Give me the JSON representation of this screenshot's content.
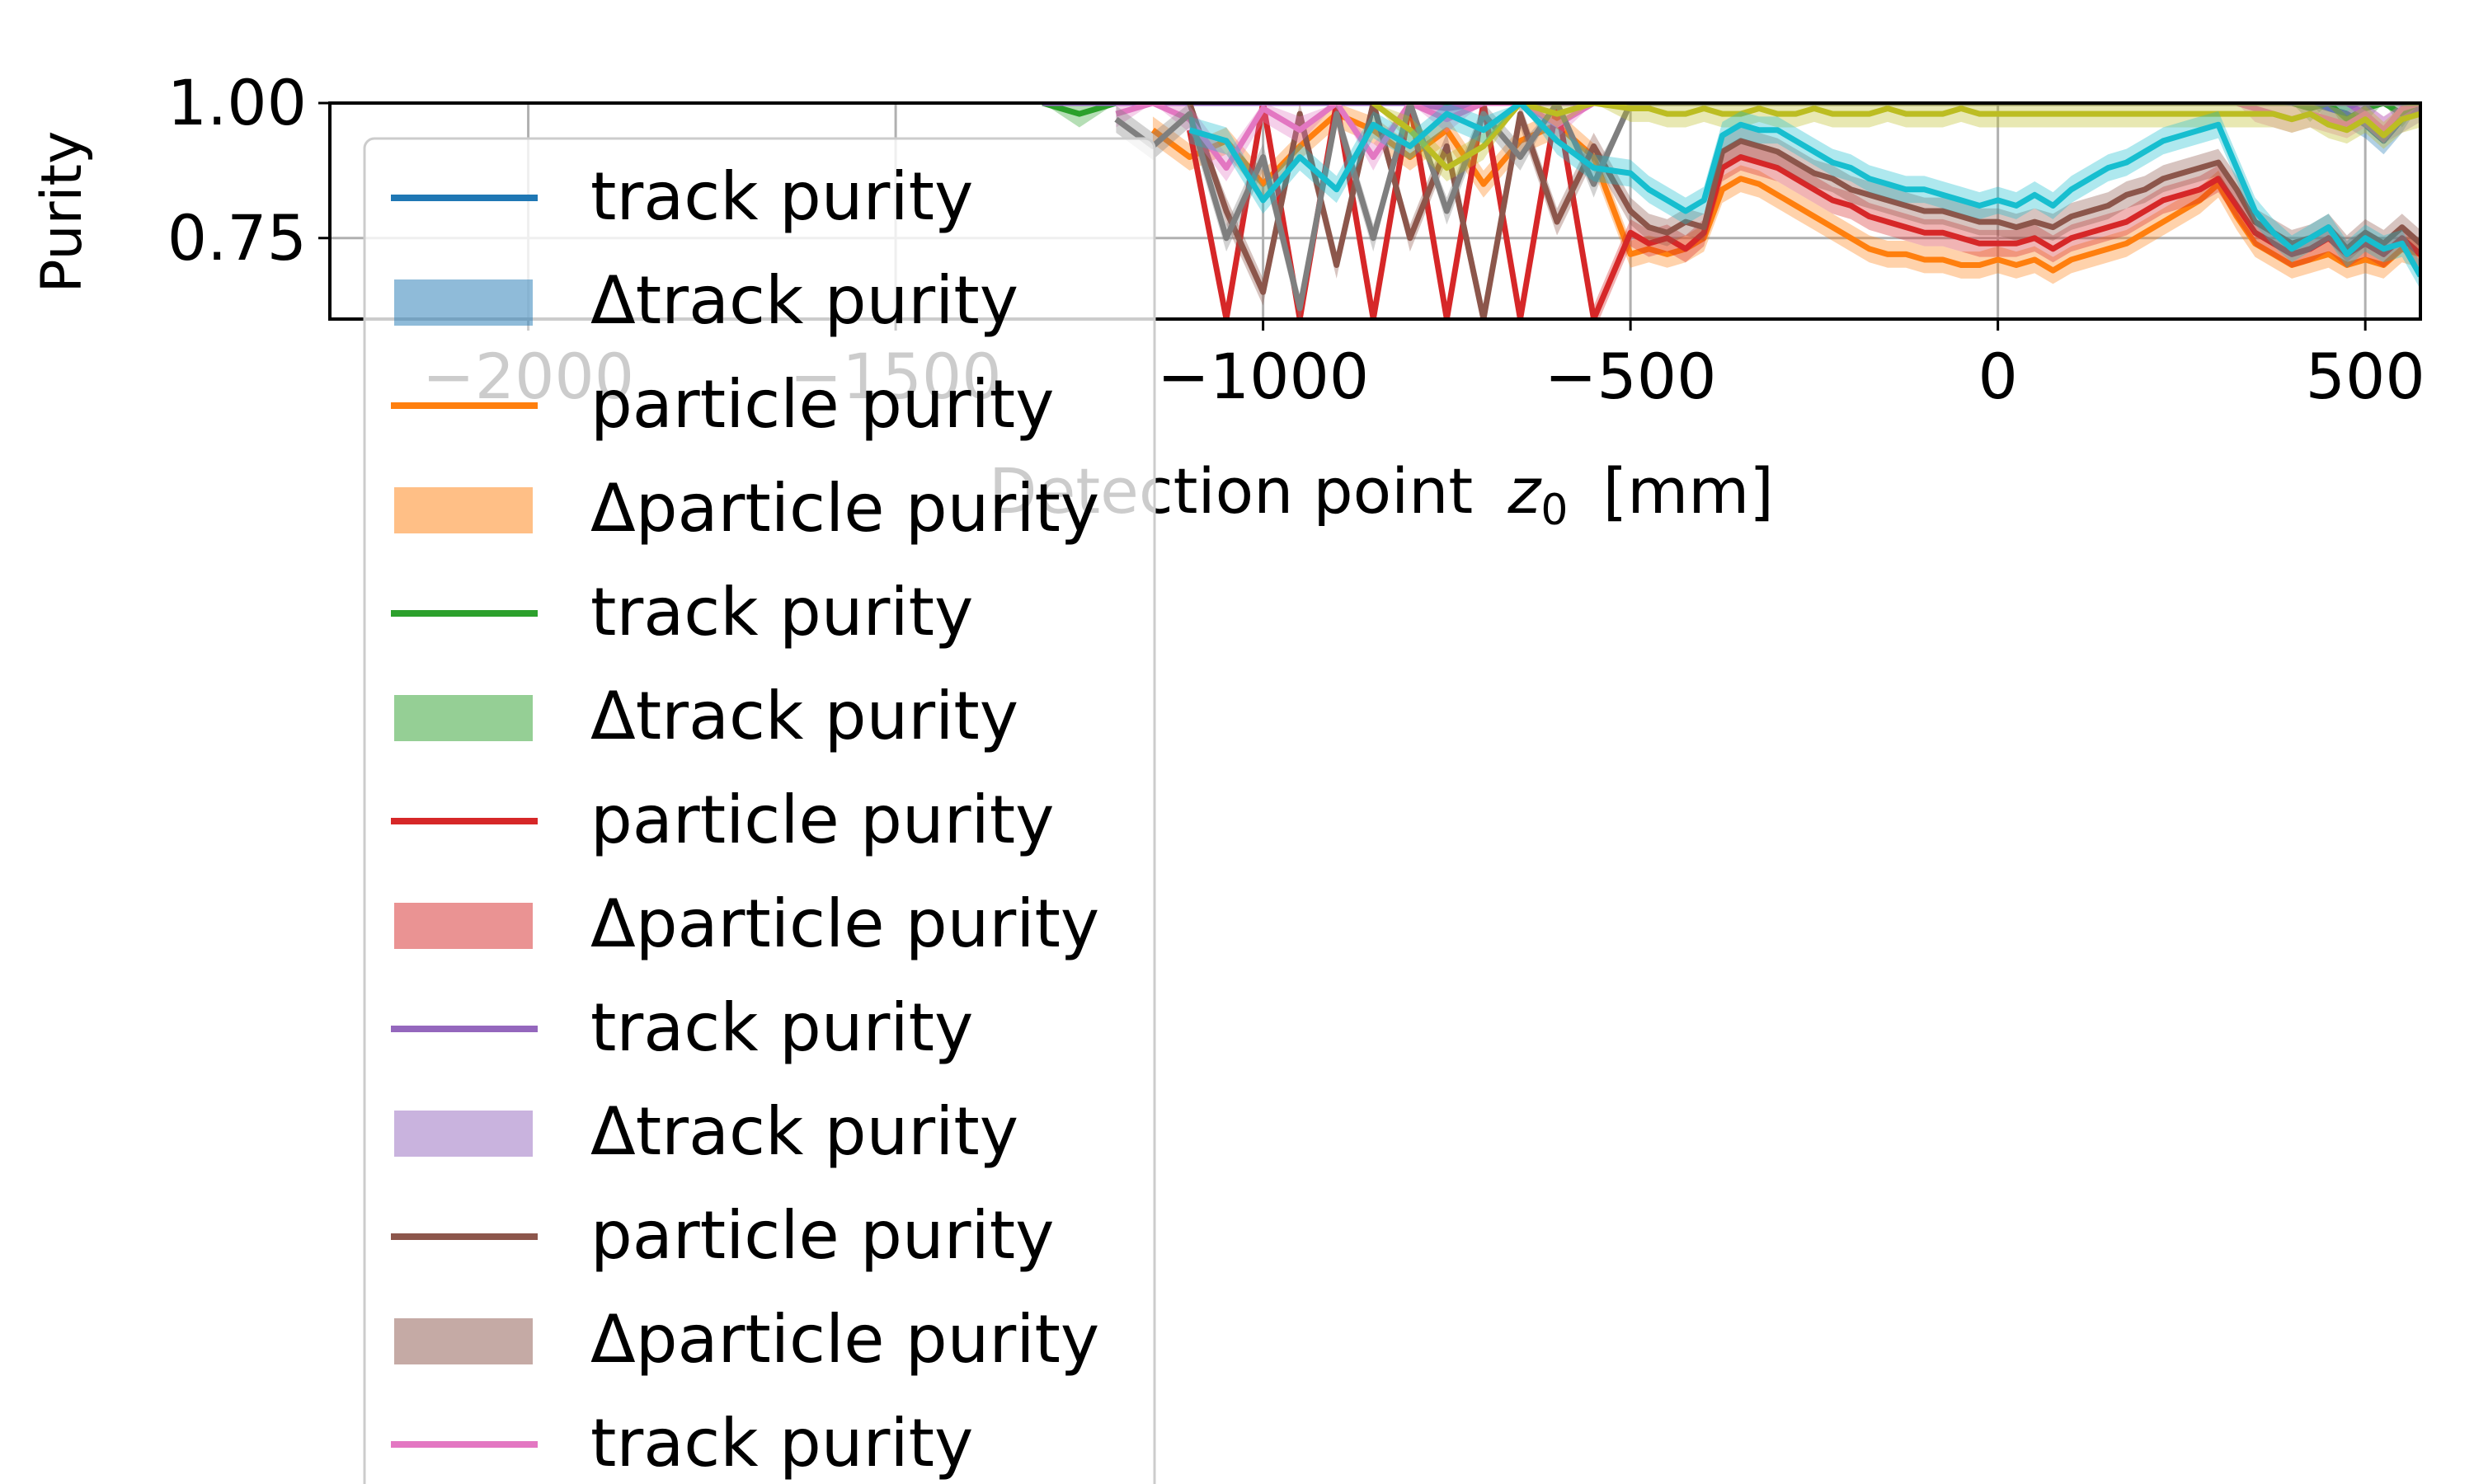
{
  "chart_data": {
    "type": "line",
    "ylabel": "Purity",
    "xlabel": "Detection point",
    "xlabel_symbol": "z",
    "xlabel_subscript": "0",
    "xlabel_unit": "[mm]",
    "xlim": [
      -2270,
      575
    ],
    "ylim": [
      0.6,
      1.0
    ],
    "xticks": [
      -2000,
      -1500,
      -1000,
      -500,
      0,
      500
    ],
    "xtick_labels": [
      "−2000",
      "−1500",
      "−1000",
      "−500",
      "0",
      "500"
    ],
    "yticks": [
      0.75,
      1.0
    ],
    "ytick_labels": [
      "0.75",
      "1.00"
    ],
    "grid": true,
    "legend_placement": "upper-left",
    "x": [
      -1300,
      -1250,
      -1200,
      -1150,
      -1100,
      -1050,
      -1000,
      -950,
      -900,
      -850,
      -800,
      -750,
      -700,
      -650,
      -600,
      -550,
      -500,
      -475,
      -450,
      -425,
      -400,
      -375,
      -350,
      -325,
      -300,
      -275,
      -250,
      -225,
      -200,
      -175,
      -150,
      -125,
      -100,
      -75,
      -50,
      -25,
      0,
      25,
      50,
      75,
      100,
      125,
      150,
      175,
      200,
      225,
      250,
      275,
      300,
      325,
      350,
      375,
      400,
      425,
      450,
      475,
      500,
      525,
      550,
      575
    ],
    "series": [
      {
        "name": "track purity",
        "kind": "line",
        "color": "#1f77b4",
        "values": [
          1.0,
          1.0,
          1.0,
          1.0,
          1.0,
          1.0,
          1.0,
          1.0,
          1.0,
          1.0,
          1.0,
          1.0,
          1.0,
          1.0,
          1.0,
          1.0,
          1.0,
          1.0,
          1.0,
          1.0,
          1.0,
          1.0,
          1.0,
          1.0,
          1.0,
          1.0,
          1.0,
          1.0,
          1.0,
          1.0,
          1.0,
          1.0,
          1.0,
          1.0,
          1.0,
          1.0,
          1.0,
          1.0,
          1.0,
          1.0,
          1.0,
          1.0,
          1.0,
          1.0,
          1.0,
          1.0,
          1.0,
          1.0,
          1.0,
          1.0,
          1.0,
          1.0,
          1.0,
          1.0,
          0.99,
          0.98,
          0.96,
          0.93,
          0.97,
          1.0
        ]
      },
      {
        "name": "Δtrack purity",
        "kind": "band",
        "color": "#1f77b4"
      },
      {
        "name": "particle purity",
        "kind": "line",
        "color": "#ff7f0e",
        "values": [
          null,
          null,
          null,
          0.95,
          0.9,
          0.93,
          0.85,
          0.92,
          0.98,
          0.95,
          0.9,
          0.95,
          0.85,
          0.93,
          0.96,
          0.9,
          0.72,
          0.73,
          0.72,
          0.73,
          0.75,
          0.84,
          0.86,
          0.85,
          0.83,
          0.81,
          0.79,
          0.77,
          0.75,
          0.73,
          0.72,
          0.72,
          0.71,
          0.71,
          0.7,
          0.7,
          0.71,
          0.7,
          0.71,
          0.69,
          0.71,
          0.72,
          0.73,
          0.74,
          0.76,
          0.78,
          0.8,
          0.82,
          0.85,
          0.79,
          0.74,
          0.72,
          0.7,
          0.71,
          0.72,
          0.7,
          0.71,
          0.7,
          0.73,
          0.72
        ]
      },
      {
        "name": "Δparticle purity",
        "kind": "band",
        "color": "#ff7f0e"
      },
      {
        "name": "track purity",
        "kind": "line",
        "color": "#2ca02c",
        "values": [
          1.0,
          0.98,
          1.0,
          1.0,
          1.0,
          1.0,
          1.0,
          1.0,
          1.0,
          1.0,
          1.0,
          1.0,
          1.0,
          1.0,
          1.0,
          1.0,
          1.0,
          1.0,
          1.0,
          1.0,
          1.0,
          1.0,
          1.0,
          1.0,
          1.0,
          1.0,
          1.0,
          1.0,
          1.0,
          1.0,
          1.0,
          1.0,
          1.0,
          1.0,
          1.0,
          1.0,
          1.0,
          1.0,
          1.0,
          1.0,
          1.0,
          1.0,
          1.0,
          1.0,
          1.0,
          1.0,
          1.0,
          1.0,
          1.0,
          1.0,
          1.0,
          1.0,
          1.0,
          0.99,
          1.0,
          0.97,
          0.99,
          1.0,
          0.98,
          1.0
        ]
      },
      {
        "name": "Δtrack purity",
        "kind": "band",
        "color": "#2ca02c"
      },
      {
        "name": "particle purity",
        "kind": "line",
        "color": "#d62728",
        "values": [
          null,
          null,
          null,
          null,
          0.95,
          0.6,
          1.0,
          0.6,
          1.0,
          0.6,
          1.0,
          0.6,
          1.0,
          0.6,
          1.0,
          0.6,
          0.76,
          0.74,
          0.75,
          0.73,
          0.76,
          0.88,
          0.9,
          0.89,
          0.88,
          0.86,
          0.84,
          0.82,
          0.81,
          0.79,
          0.78,
          0.77,
          0.76,
          0.76,
          0.75,
          0.74,
          0.74,
          0.74,
          0.75,
          0.73,
          0.75,
          0.76,
          0.77,
          0.78,
          0.8,
          0.82,
          0.83,
          0.84,
          0.86,
          0.81,
          0.76,
          0.74,
          0.72,
          0.73,
          0.75,
          0.72,
          0.74,
          0.72,
          0.75,
          0.72
        ]
      },
      {
        "name": "Δparticle purity",
        "kind": "band",
        "color": "#d62728"
      },
      {
        "name": "track purity",
        "kind": "line",
        "color": "#9467bd",
        "values": [
          1.0,
          1.0,
          1.0,
          1.0,
          1.0,
          1.0,
          1.0,
          1.0,
          1.0,
          1.0,
          1.0,
          0.99,
          1.0,
          1.0,
          1.0,
          1.0,
          1.0,
          1.0,
          1.0,
          1.0,
          1.0,
          1.0,
          1.0,
          1.0,
          1.0,
          1.0,
          1.0,
          1.0,
          1.0,
          1.0,
          1.0,
          1.0,
          1.0,
          1.0,
          1.0,
          1.0,
          1.0,
          1.0,
          1.0,
          1.0,
          1.0,
          1.0,
          1.0,
          1.0,
          1.0,
          1.0,
          1.0,
          1.0,
          1.0,
          1.0,
          1.0,
          1.0,
          1.0,
          1.0,
          1.0,
          1.0,
          0.98,
          0.95,
          0.97,
          0.99
        ]
      },
      {
        "name": "Δtrack purity",
        "kind": "band",
        "color": "#9467bd"
      },
      {
        "name": "particle purity",
        "kind": "line",
        "color": "#8c564b",
        "values": [
          null,
          null,
          null,
          null,
          1.0,
          0.8,
          0.65,
          0.98,
          0.7,
          1.0,
          0.75,
          0.92,
          0.6,
          0.98,
          0.78,
          0.92,
          0.8,
          0.77,
          0.76,
          0.78,
          0.77,
          0.91,
          0.93,
          0.92,
          0.91,
          0.89,
          0.87,
          0.86,
          0.84,
          0.83,
          0.82,
          0.81,
          0.8,
          0.8,
          0.79,
          0.78,
          0.78,
          0.77,
          0.78,
          0.77,
          0.79,
          0.8,
          0.81,
          0.83,
          0.84,
          0.86,
          0.87,
          0.88,
          0.89,
          0.84,
          0.78,
          0.76,
          0.74,
          0.75,
          0.77,
          0.73,
          0.76,
          0.74,
          0.77,
          0.74
        ]
      },
      {
        "name": "Δparticle purity",
        "kind": "band",
        "color": "#8c564b"
      },
      {
        "name": "track purity",
        "kind": "line",
        "color": "#e377c2",
        "values": [
          null,
          null,
          0.98,
          1.0,
          0.97,
          0.88,
          0.99,
          0.95,
          1.0,
          0.9,
          1.0,
          0.97,
          1.0,
          1.0,
          0.96,
          1.0,
          1.0,
          1.0,
          1.0,
          1.0,
          1.0,
          1.0,
          1.0,
          1.0,
          1.0,
          1.0,
          1.0,
          1.0,
          1.0,
          1.0,
          1.0,
          1.0,
          1.0,
          1.0,
          1.0,
          1.0,
          1.0,
          1.0,
          1.0,
          1.0,
          1.0,
          1.0,
          1.0,
          1.0,
          1.0,
          1.0,
          1.0,
          1.0,
          1.0,
          1.0,
          0.99,
          0.98,
          0.97,
          0.98,
          0.97,
          0.96,
          0.98,
          0.95,
          0.99,
          1.0
        ]
      },
      {
        "name": "",
        "kind": "line",
        "color": "#7f7f7f",
        "values": [
          null,
          null,
          0.97,
          0.92,
          0.98,
          0.75,
          0.9,
          0.62,
          0.98,
          0.75,
          1.0,
          0.8,
          0.98,
          0.9,
          1.0,
          0.85,
          1.0,
          1.0,
          1.0,
          1.0,
          1.0,
          1.0,
          1.0,
          1.0,
          1.0,
          1.0,
          1.0,
          1.0,
          1.0,
          1.0,
          1.0,
          1.0,
          1.0,
          1.0,
          1.0,
          1.0,
          1.0,
          1.0,
          1.0,
          1.0,
          1.0,
          1.0,
          1.0,
          1.0,
          1.0,
          1.0,
          1.0,
          1.0,
          1.0,
          1.0,
          1.0,
          1.0,
          1.0,
          1.0,
          1.0,
          1.0,
          1.0,
          1.0,
          1.0,
          1.0
        ]
      },
      {
        "name": "",
        "kind": "line",
        "color": "#bcbd22",
        "values": [
          null,
          null,
          null,
          null,
          null,
          null,
          null,
          null,
          null,
          1.0,
          0.95,
          0.88,
          0.92,
          1.0,
          0.98,
          1.0,
          0.99,
          0.99,
          0.98,
          0.98,
          0.99,
          0.98,
          0.98,
          0.99,
          0.98,
          0.98,
          0.99,
          0.98,
          0.98,
          0.98,
          0.99,
          0.98,
          0.98,
          0.98,
          0.99,
          0.98,
          0.98,
          0.98,
          0.98,
          0.98,
          0.98,
          0.98,
          0.98,
          0.98,
          0.98,
          0.98,
          0.98,
          0.98,
          0.98,
          0.98,
          0.98,
          0.98,
          0.97,
          0.98,
          0.96,
          0.95,
          0.97,
          0.94,
          0.97,
          0.98
        ]
      },
      {
        "name": "",
        "kind": "line",
        "color": "#17becf",
        "values": [
          null,
          null,
          null,
          null,
          0.95,
          0.93,
          0.82,
          0.9,
          0.84,
          0.96,
          0.92,
          0.98,
          0.95,
          1.0,
          0.93,
          0.88,
          0.87,
          0.84,
          0.82,
          0.8,
          0.82,
          0.94,
          0.96,
          0.95,
          0.95,
          0.93,
          0.91,
          0.89,
          0.88,
          0.86,
          0.85,
          0.84,
          0.84,
          0.83,
          0.82,
          0.81,
          0.82,
          0.81,
          0.83,
          0.81,
          0.84,
          0.86,
          0.88,
          0.89,
          0.91,
          0.93,
          0.94,
          0.95,
          0.96,
          0.88,
          0.8,
          0.76,
          0.73,
          0.75,
          0.77,
          0.72,
          0.75,
          0.73,
          0.74,
          0.68
        ]
      }
    ]
  }
}
